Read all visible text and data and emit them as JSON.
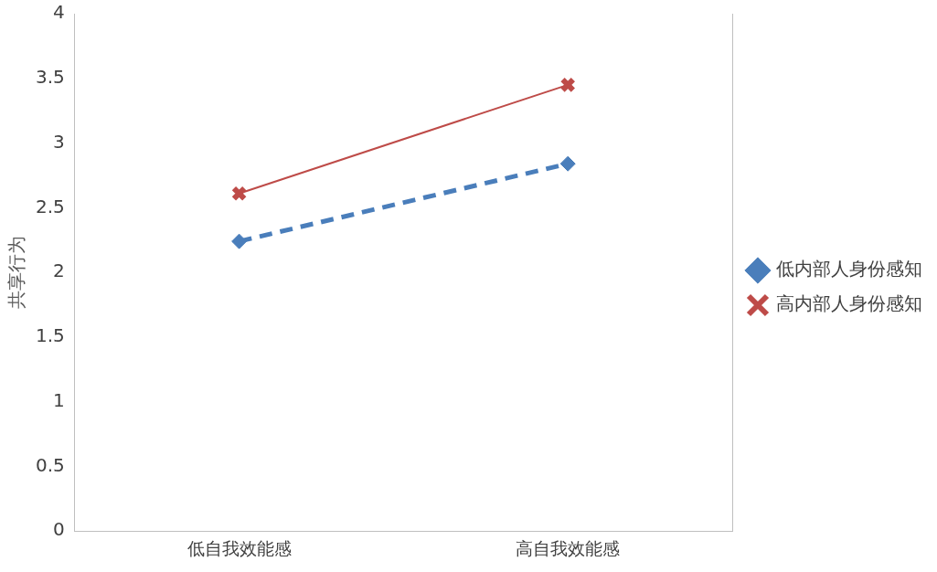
{
  "chart_data": {
    "type": "line",
    "ylabel": "共享行为",
    "categories": [
      "低自我效能感",
      "高自我效能感"
    ],
    "series": [
      {
        "name": "低内部人身份感知",
        "color": "#4a7ebb",
        "values": [
          2.24,
          2.84
        ],
        "marker": "diamond",
        "line_style": "dashed"
      },
      {
        "name": "高内部人身份感知",
        "color": "#be4b48",
        "values": [
          2.61,
          3.45
        ],
        "marker": "cross",
        "line_style": "solid"
      }
    ],
    "ylim": [
      0,
      4
    ],
    "yticks": [
      0,
      0.5,
      1,
      1.5,
      2,
      2.5,
      3,
      3.5,
      4
    ],
    "grid": false,
    "legend": "right"
  }
}
